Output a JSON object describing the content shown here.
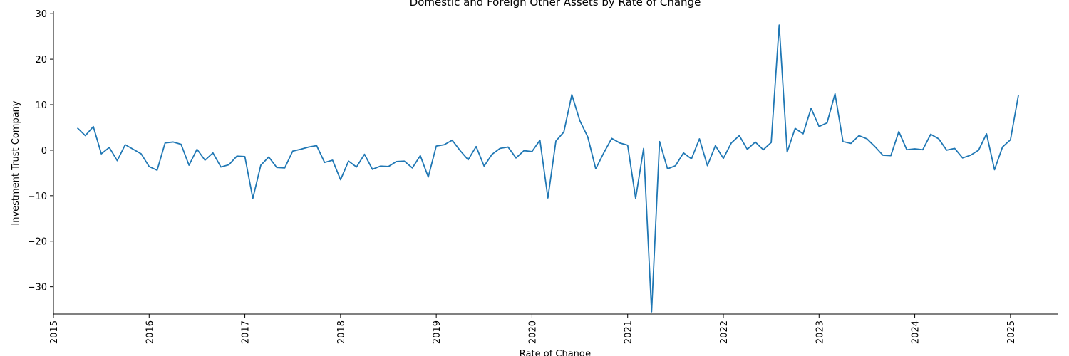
{
  "chart_data": {
    "type": "line",
    "title": "Domestic and Foreign Other Assets by Rate of Change",
    "xlabel": "Rate of Change",
    "ylabel": "Investment Trust Company",
    "x_ticks": [
      "2015",
      "2016",
      "2017",
      "2018",
      "2019",
      "2020",
      "2021",
      "2022",
      "2023",
      "2024",
      "2025"
    ],
    "y_ticks": [
      -30,
      -20,
      -10,
      0,
      10,
      20,
      30
    ],
    "xlim": [
      "2015-01",
      "2025-07"
    ],
    "ylim": [
      -36,
      30.5
    ],
    "grid": false,
    "color": "#1f77b4",
    "series": [
      {
        "x": [
          "2015-04",
          "2015-05",
          "2015-06",
          "2015-07",
          "2015-08",
          "2015-09",
          "2015-10",
          "2015-11",
          "2015-12",
          "2016-01",
          "2016-02",
          "2016-03",
          "2016-04",
          "2016-05",
          "2016-06",
          "2016-07",
          "2016-08",
          "2016-09",
          "2016-10",
          "2016-11",
          "2016-12",
          "2017-01",
          "2017-02",
          "2017-03",
          "2017-04",
          "2017-05",
          "2017-06",
          "2017-07",
          "2017-08",
          "2017-09",
          "2017-10",
          "2017-11",
          "2017-12",
          "2018-01",
          "2018-02",
          "2018-03",
          "2018-04",
          "2018-05",
          "2018-06",
          "2018-07",
          "2018-08",
          "2018-09",
          "2018-10",
          "2018-11",
          "2018-12",
          "2019-01",
          "2019-02",
          "2019-03",
          "2019-04",
          "2019-05",
          "2019-06",
          "2019-07",
          "2019-08",
          "2019-09",
          "2019-10",
          "2019-11",
          "2019-12",
          "2020-01",
          "2020-02",
          "2020-03",
          "2020-04",
          "2020-05",
          "2020-06",
          "2020-07",
          "2020-08",
          "2020-09",
          "2020-10",
          "2020-11",
          "2020-12",
          "2021-01",
          "2021-02",
          "2021-03",
          "2021-04",
          "2021-05",
          "2021-06",
          "2021-07",
          "2021-08",
          "2021-09",
          "2021-10",
          "2021-11",
          "2021-12",
          "2022-01",
          "2022-02",
          "2022-03",
          "2022-04",
          "2022-05",
          "2022-06",
          "2022-07",
          "2022-08",
          "2022-09",
          "2022-10",
          "2022-11",
          "2022-12",
          "2023-01",
          "2023-02",
          "2023-03",
          "2023-04",
          "2023-05",
          "2023-06",
          "2023-07",
          "2023-08",
          "2023-09",
          "2023-10",
          "2023-11",
          "2023-12",
          "2024-01",
          "2024-02",
          "2024-03",
          "2024-04",
          "2024-05",
          "2024-06",
          "2024-07",
          "2024-08",
          "2024-09",
          "2024-10",
          "2024-11",
          "2024-12",
          "2025-01",
          "2025-02"
        ],
        "values": [
          4.9,
          3.2,
          5.2,
          -0.8,
          0.6,
          -2.3,
          1.2,
          0.2,
          -0.8,
          -3.6,
          -4.4,
          1.6,
          1.8,
          1.3,
          -3.3,
          0.2,
          -2.2,
          -0.6,
          -3.7,
          -3.2,
          -1.3,
          -1.4,
          -10.6,
          -3.3,
          -1.5,
          -3.8,
          -3.9,
          -0.2,
          0.2,
          0.7,
          1.0,
          -2.7,
          -2.2,
          -6.5,
          -2.4,
          -3.7,
          -0.9,
          -4.2,
          -3.5,
          -3.6,
          -2.5,
          -2.4,
          -3.9,
          -1.2,
          -5.9,
          0.9,
          1.2,
          2.2,
          -0.1,
          -2.1,
          0.8,
          -3.5,
          -0.9,
          0.4,
          0.7,
          -1.7,
          -0.1,
          -0.3,
          2.2,
          -10.5,
          2.0,
          4.0,
          12.2,
          6.5,
          2.9,
          -4.1,
          -0.6,
          2.6,
          1.6,
          1.1,
          -10.6,
          0.4,
          -35.5,
          1.9,
          -4.1,
          -3.4,
          -0.6,
          -1.9,
          2.5,
          -3.4,
          1.0,
          -1.8,
          1.6,
          3.2,
          0.2,
          1.8,
          0.1,
          1.7,
          27.5,
          -0.4,
          4.8,
          3.6,
          9.2,
          5.2,
          6.0,
          12.4,
          1.9,
          1.5,
          3.2,
          2.5,
          0.8,
          -1.1,
          -1.2,
          4.1,
          0.1,
          0.3,
          0.1,
          3.5,
          2.5,
          0.0,
          0.4,
          -1.7,
          -1.1,
          0.0,
          3.6,
          -4.3,
          0.7,
          2.3,
          12.1
        ]
      }
    ]
  }
}
